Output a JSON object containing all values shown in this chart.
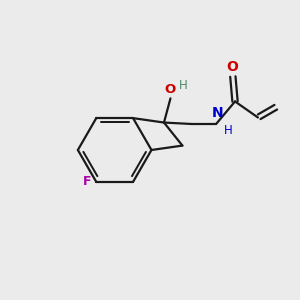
{
  "background_color": "#ebebeb",
  "bond_color": "#1a1a1a",
  "atom_colors": {
    "O": "#cc0000",
    "N": "#0000cc",
    "F": "#aa00aa",
    "H_gray": "#4a8a6a",
    "C": "#1a1a1a"
  },
  "figsize": [
    3.0,
    3.0
  ],
  "dpi": 100
}
